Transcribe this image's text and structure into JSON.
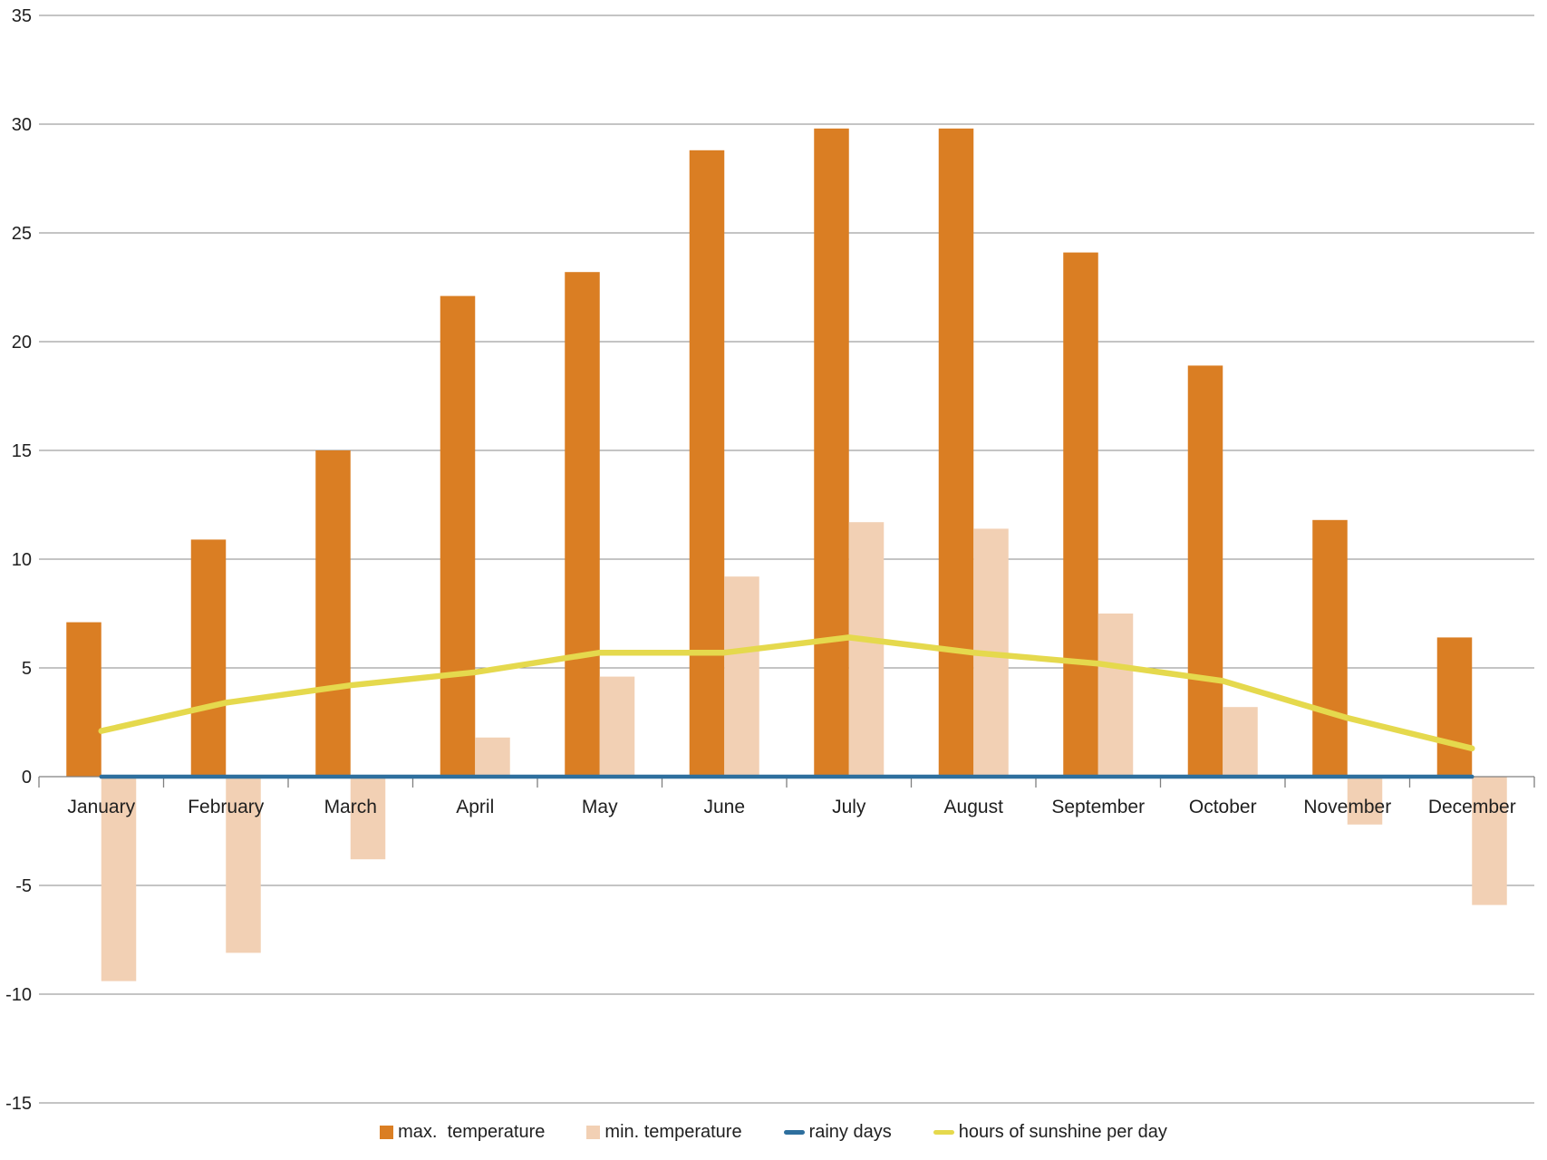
{
  "chart_data": {
    "type": "bar",
    "subtype": "combo-bar-line",
    "title": "",
    "xlabel": "",
    "ylabel": "",
    "categories": [
      "January",
      "February",
      "March",
      "April",
      "May",
      "June",
      "July",
      "August",
      "September",
      "October",
      "November",
      "December"
    ],
    "series": [
      {
        "name": "max.  temperature",
        "type": "bar",
        "color": "#DA7E23",
        "values": [
          7.1,
          10.9,
          15.0,
          22.1,
          23.2,
          28.8,
          29.8,
          29.8,
          24.1,
          18.9,
          11.8,
          6.4
        ]
      },
      {
        "name": "min. temperature",
        "type": "bar",
        "color": "#F2D0B4",
        "values": [
          -9.4,
          -8.1,
          -3.8,
          1.8,
          4.6,
          9.2,
          11.7,
          11.4,
          7.5,
          3.2,
          -2.2,
          -5.9
        ]
      },
      {
        "name": "rainy days",
        "type": "line",
        "color": "#2E6F9E",
        "values": [
          0,
          0,
          0,
          0,
          0,
          0,
          0,
          0,
          0,
          0,
          0,
          0
        ]
      },
      {
        "name": "hours of sunshine per day",
        "type": "line",
        "color": "#E5D94D",
        "values": [
          2.1,
          3.4,
          4.2,
          4.8,
          5.7,
          5.7,
          6.4,
          5.7,
          5.2,
          4.4,
          2.7,
          1.3
        ]
      }
    ],
    "ylim": [
      -15,
      35
    ],
    "ytick_step": 5,
    "grid": true,
    "legend_position": "bottom"
  },
  "axes": {
    "y_ticks": [
      35,
      30,
      25,
      20,
      15,
      10,
      5,
      0,
      -5,
      -10,
      -15
    ]
  },
  "colors": {
    "gridline": "#8A8A8A",
    "axis": "#808080",
    "text": "#1F1F1F",
    "background": "#FFFFFF"
  }
}
